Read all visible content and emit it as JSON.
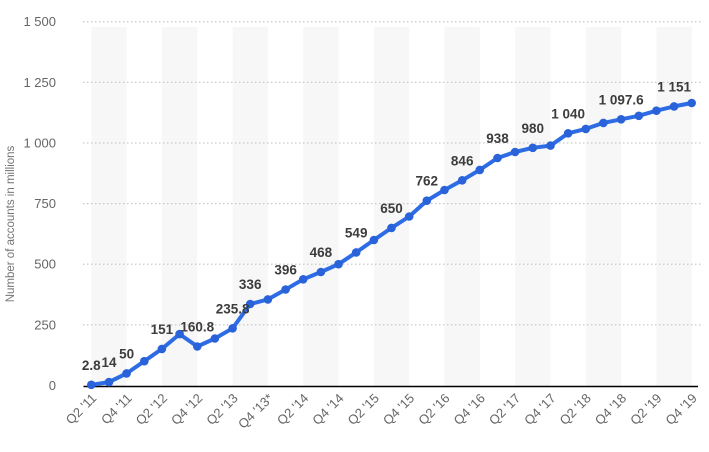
{
  "chart": {
    "y_axis_title": "Number of accounts in millions",
    "colors": {
      "line": "#2d6ce5",
      "marker": "#2a63d9",
      "band": "#f7f7f7",
      "grid": "#c9c9c9",
      "axis": "#000000",
      "tick_text": "#666666",
      "label_text": "#3c3c3c"
    }
  },
  "chart_data": {
    "type": "line",
    "title": "",
    "xlabel": "",
    "ylabel": "Number of accounts in millions",
    "ylim": [
      0,
      1500
    ],
    "grid": "dotted-horizontal",
    "legend_position": "none",
    "y_ticks": [
      {
        "value": 0,
        "label": "0"
      },
      {
        "value": 250,
        "label": "250"
      },
      {
        "value": 500,
        "label": "500"
      },
      {
        "value": 750,
        "label": "750"
      },
      {
        "value": 1000,
        "label": "1 000"
      },
      {
        "value": 1250,
        "label": "1 250"
      },
      {
        "value": 1500,
        "label": "1 500"
      }
    ],
    "x_tick_labels": [
      "Q2 '11",
      "Q4 '11",
      "Q2 '12",
      "Q4 '12",
      "Q2 '13",
      "Q4 '13*",
      "Q2 '14",
      "Q4 '14",
      "Q2 '15",
      "Q4 '15",
      "Q2 '16",
      "Q4 '16",
      "Q2 '17",
      "Q4 '17",
      "Q2 '18",
      "Q4 '18",
      "Q2 '19",
      "Q4 '19"
    ],
    "x": [
      "Q2 '11",
      "Q3 '11",
      "Q4 '11",
      "Q1 '12",
      "Q2 '12",
      "Q3 '12",
      "Q4 '12",
      "Q1 '13",
      "Q2 '13",
      "Q3 '13",
      "Q4 '13",
      "Q1 '14",
      "Q2 '14",
      "Q3 '14",
      "Q4 '14",
      "Q1 '15",
      "Q2 '15",
      "Q3 '15",
      "Q4 '15",
      "Q1 '16",
      "Q2 '16",
      "Q3 '16",
      "Q4 '16",
      "Q1 '17",
      "Q2 '17",
      "Q3 '17",
      "Q4 '17",
      "Q1 '18",
      "Q2 '18",
      "Q3 '18",
      "Q4 '18",
      "Q1 '19",
      "Q2 '19",
      "Q3 '19",
      "Q4 '19"
    ],
    "values": [
      2.8,
      14,
      50,
      100,
      151,
      212,
      160.8,
      194,
      235.8,
      336,
      355,
      396,
      438,
      468,
      500,
      549,
      600,
      650,
      697,
      762,
      806,
      846,
      889,
      938,
      963,
      980,
      989,
      1040,
      1058,
      1083,
      1097.6,
      1112,
      1133,
      1151,
      1165
    ],
    "point_labels": [
      "2.8",
      "14",
      "50",
      null,
      "151",
      null,
      "160.8",
      null,
      "235.8",
      "336",
      null,
      "396",
      null,
      "468",
      null,
      "549",
      null,
      "650",
      null,
      "762",
      null,
      "846",
      null,
      "938",
      null,
      "980",
      null,
      "1 040",
      null,
      null,
      "1 097.6",
      null,
      null,
      "1 151",
      null
    ]
  }
}
